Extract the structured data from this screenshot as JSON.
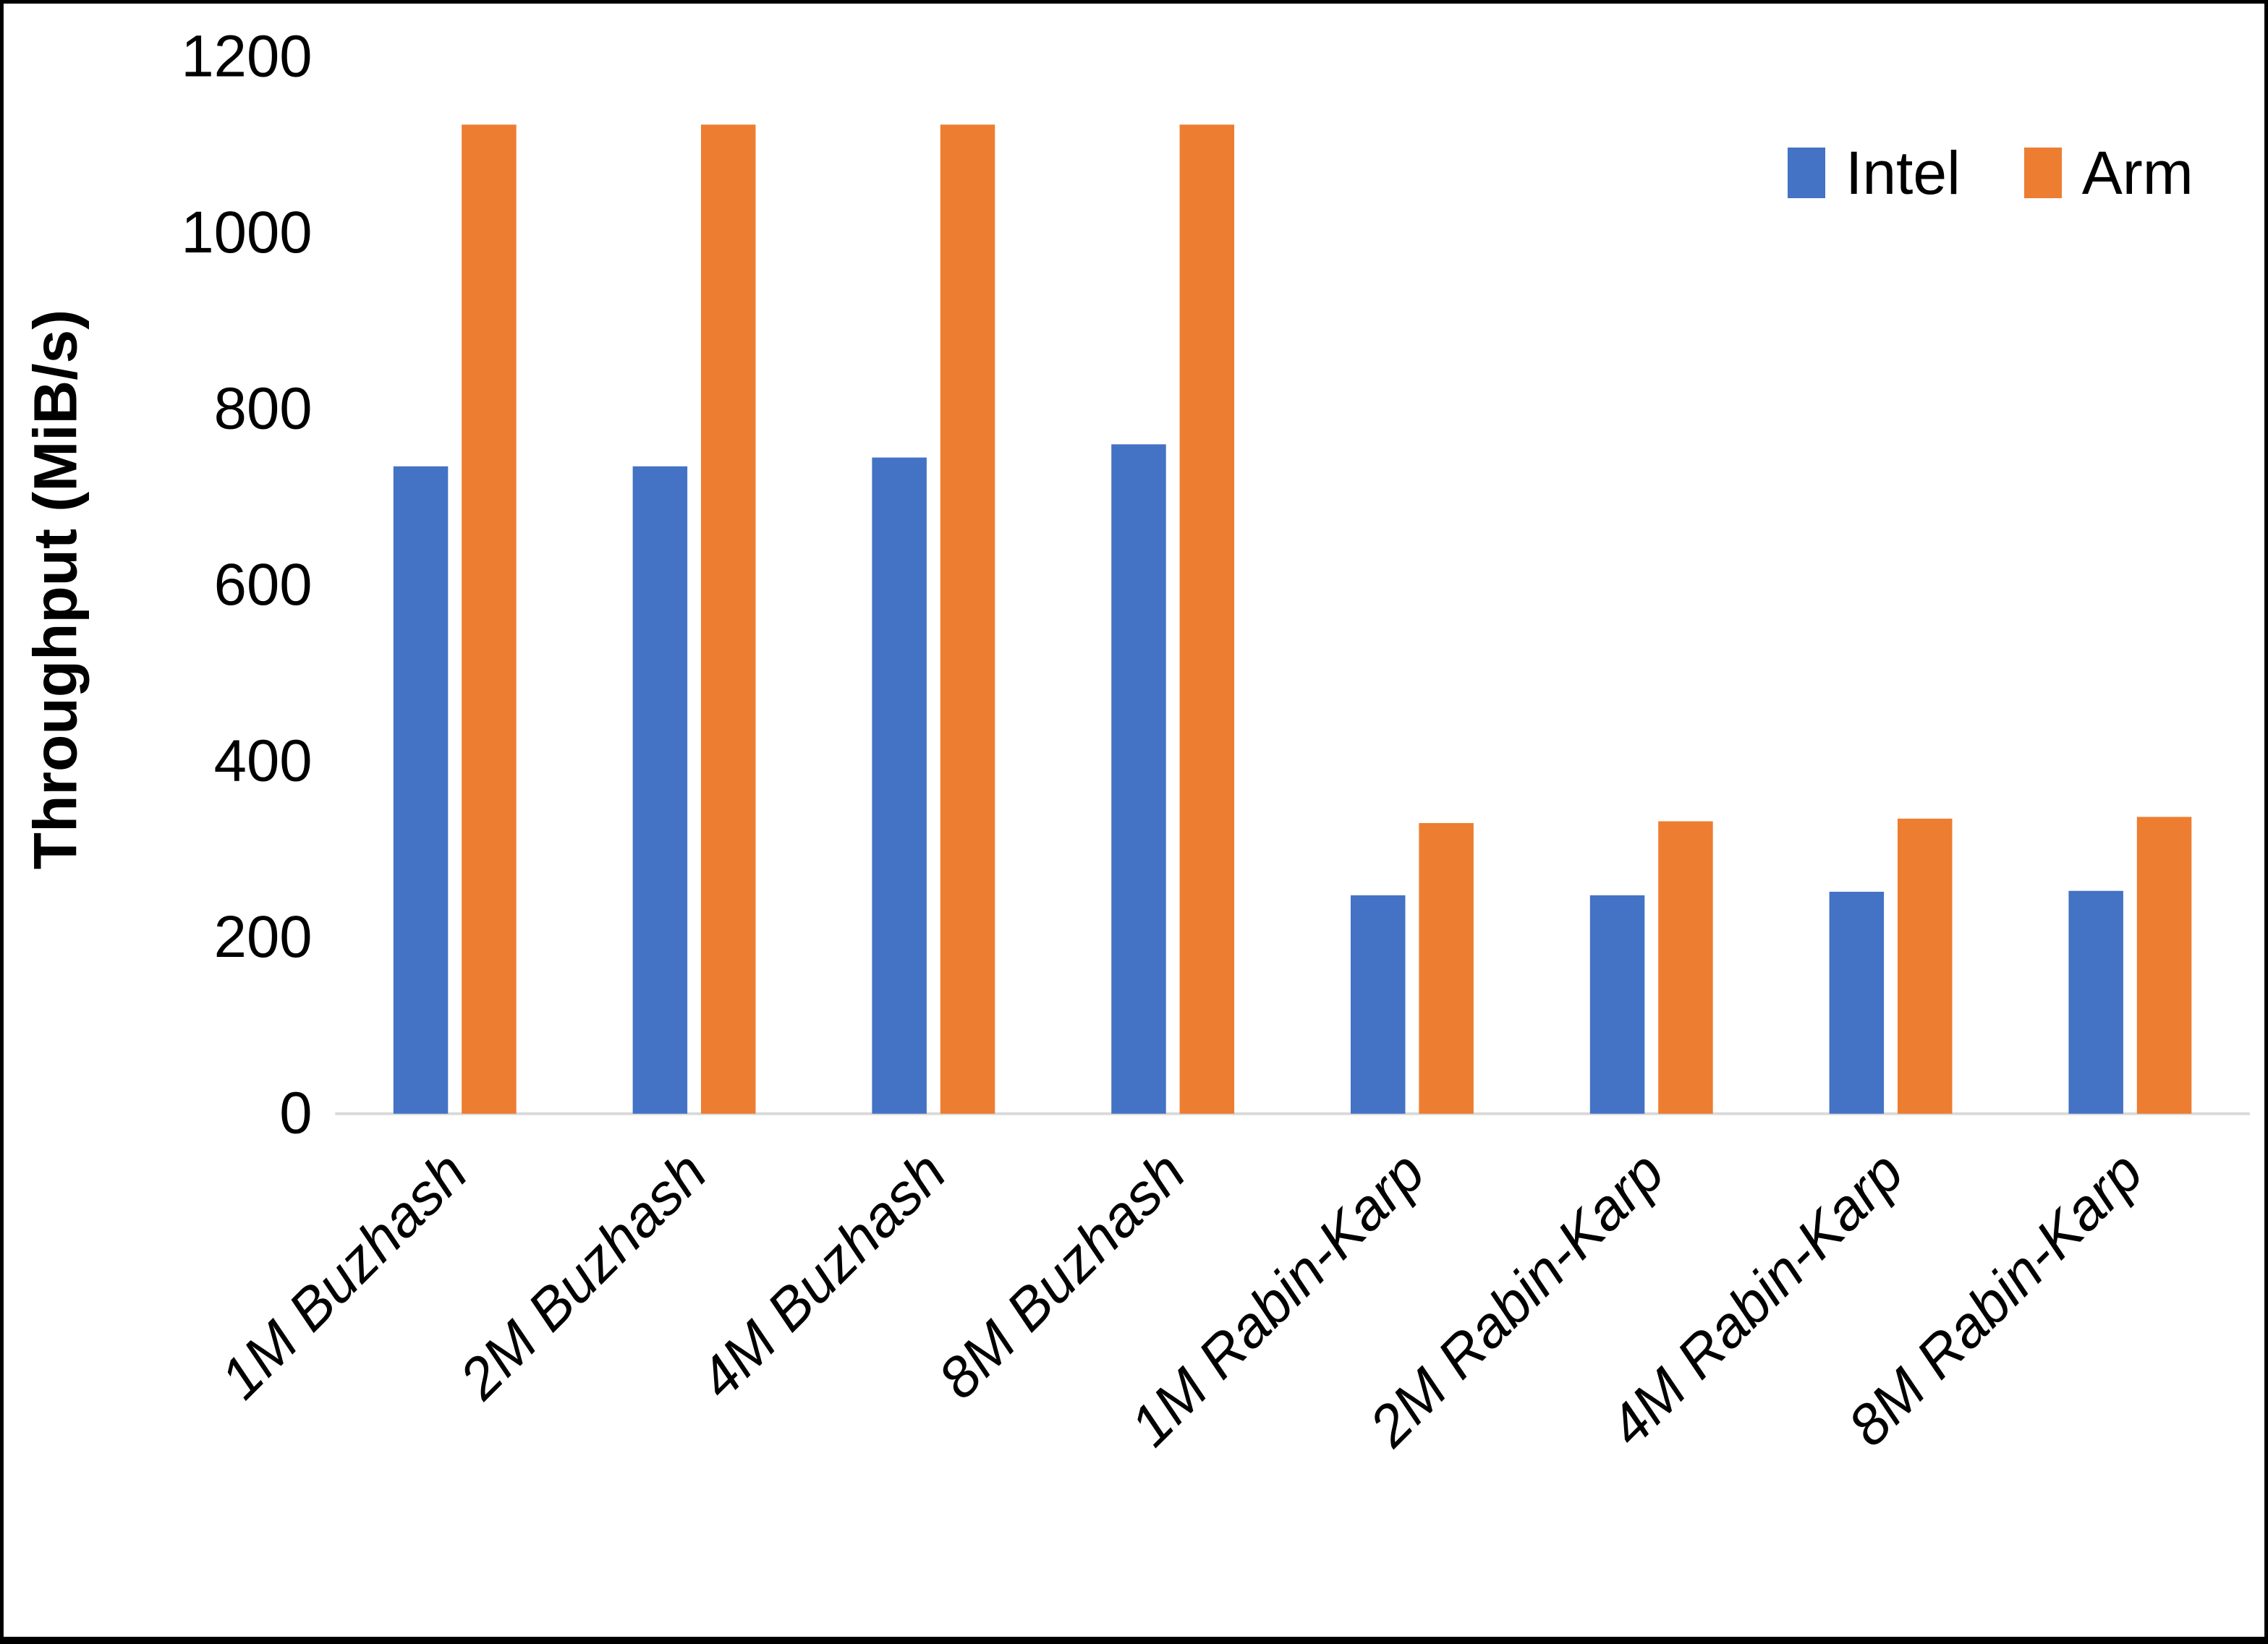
{
  "chart_data": {
    "type": "bar",
    "title": "",
    "xlabel": "",
    "ylabel": "Throughput (MiB/s)",
    "ylim": [
      0,
      1200
    ],
    "yticks": [
      0,
      200,
      400,
      600,
      800,
      1000,
      1200
    ],
    "grid": false,
    "legend_position": "top-right",
    "categories": [
      "1M Buzhash",
      "2M Buzhash",
      "4M Buzhash",
      "8M Buzhash",
      "1M Rabin-Karp",
      "2M Rabin-Karp",
      "4M Rabin-Karp",
      "8M Rabin-Karp"
    ],
    "series": [
      {
        "name": "Intel",
        "color": "#4472C4",
        "values": [
          735,
          735,
          745,
          760,
          248,
          248,
          252,
          253
        ]
      },
      {
        "name": "Arm",
        "color": "#ED7D31",
        "values": [
          1123,
          1123,
          1123,
          1123,
          330,
          332,
          335,
          337
        ]
      }
    ],
    "axis_line_color": "#D9D9D9"
  }
}
